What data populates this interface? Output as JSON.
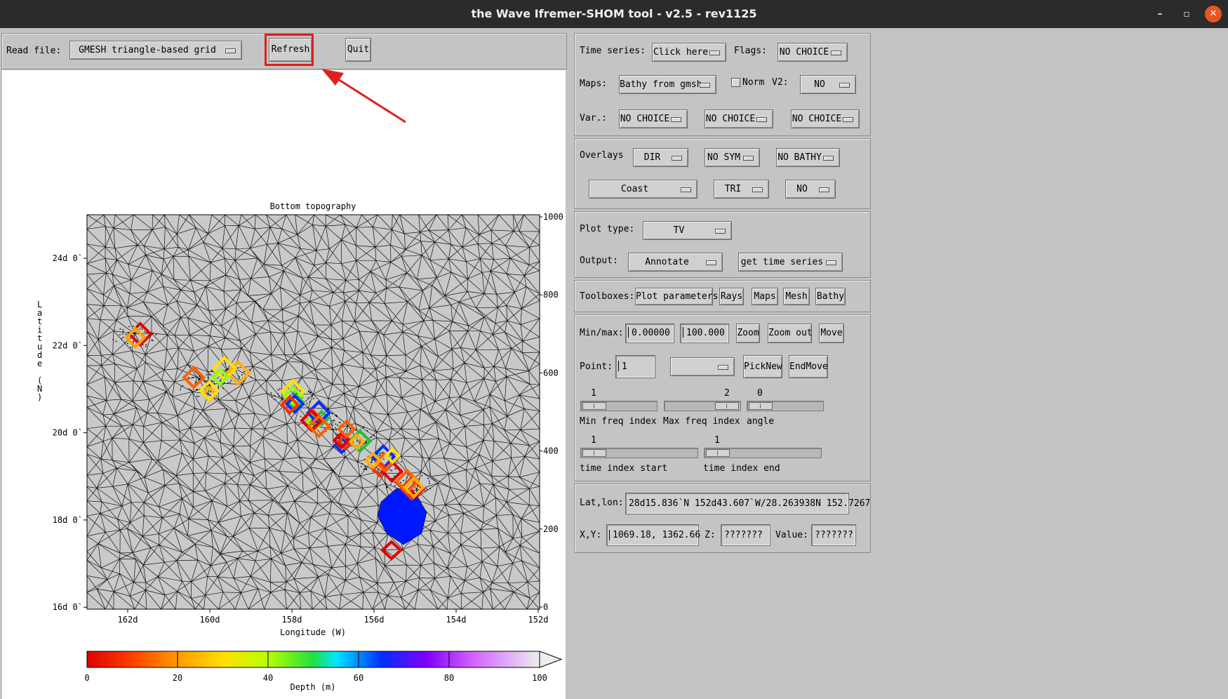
{
  "window": {
    "title": "the Wave Ifremer-SHOM tool - v2.5 - rev1125",
    "minimize": "–",
    "maximize": "▫",
    "close": "✕"
  },
  "toolbar": {
    "read_file_label": "Read file:",
    "read_file_value": "GMESH triangle-based grid",
    "refresh_label": "Refresh",
    "quit_label": "Quit"
  },
  "chart_data": {
    "type": "heatmap",
    "title": "Bottom topography",
    "xlabel": "Longitude (W)",
    "ylabel": "Latitude (N)",
    "x_ticks": [
      "162d",
      "160d",
      "158d",
      "156d",
      "154d",
      "152d"
    ],
    "y_ticks": [
      "24d 0`",
      "22d 0`",
      "20d 0`",
      "18d 0`",
      "16d 0`"
    ],
    "right_ticks": [
      "1000",
      "800",
      "600",
      "400",
      "200",
      "0"
    ],
    "colorbar": {
      "label": "Depth (m)",
      "ticks": [
        "0",
        "20",
        "40",
        "60",
        "80",
        "100"
      ],
      "range": [
        0,
        100
      ]
    }
  },
  "controls": {
    "time_series_label": "Time series:",
    "time_series_value": "Click here",
    "flags_label": "Flags:",
    "flags_value": "NO CHOICE",
    "maps_label": "Maps:",
    "maps_value": "Bathy from gmsh",
    "norm_label": "Norm",
    "v2_label": "V2:",
    "v2_value": "NO",
    "var_label": "Var.:",
    "var1": "NO CHOICE",
    "var2": "NO CHOICE",
    "var3": "NO CHOICE",
    "overlays_label": "Overlays",
    "ov_dir": "DIR",
    "ov_sym": "NO SYM",
    "ov_bathy": "NO BATHY",
    "ov_coast": "Coast",
    "ov_tri": "TRI",
    "ov_no": "NO",
    "plot_type_label": "Plot type:",
    "plot_type_value": "TV",
    "output_label": "Output:",
    "output_value": "Annotate",
    "output_action": "get time series",
    "toolboxes_label": "Toolboxes:",
    "tb_plot": "Plot parameters",
    "tb_rays": "Rays",
    "tb_maps": "Maps",
    "tb_mesh": "Mesh",
    "tb_bathy": "Bathy",
    "minmax_label": "Min/max:",
    "min_value": "0.00000",
    "max_value": "100.000",
    "zoom": "Zoom",
    "zoom_out": "Zoom out",
    "move": "Move",
    "point_label": "Point:",
    "point_value": "1",
    "point_menu": "",
    "picknew": "PickNew",
    "endmove": "EndMove",
    "min_freq_value": "1",
    "min_freq_label": "Min freq index",
    "max_freq_value": "2",
    "max_freq_label": "Max freq index",
    "angle_value": "0",
    "angle_label": "angle",
    "time_start_value": "1",
    "time_start_label": "time index start",
    "time_end_value": "1",
    "time_end_label": "time index end",
    "latlon_label": "Lat,lon:",
    "latlon_value": "28d15.836`N 152d43.607`W/28.263938N 152.7267",
    "xy_label": "X,Y:",
    "xy_value": "1069.18, 1362.66",
    "z_label": "Z:",
    "z_value": "???????",
    "value_label": "Value:",
    "value_value": "???????"
  },
  "annotation": {
    "highlight_color": "#e02020"
  }
}
